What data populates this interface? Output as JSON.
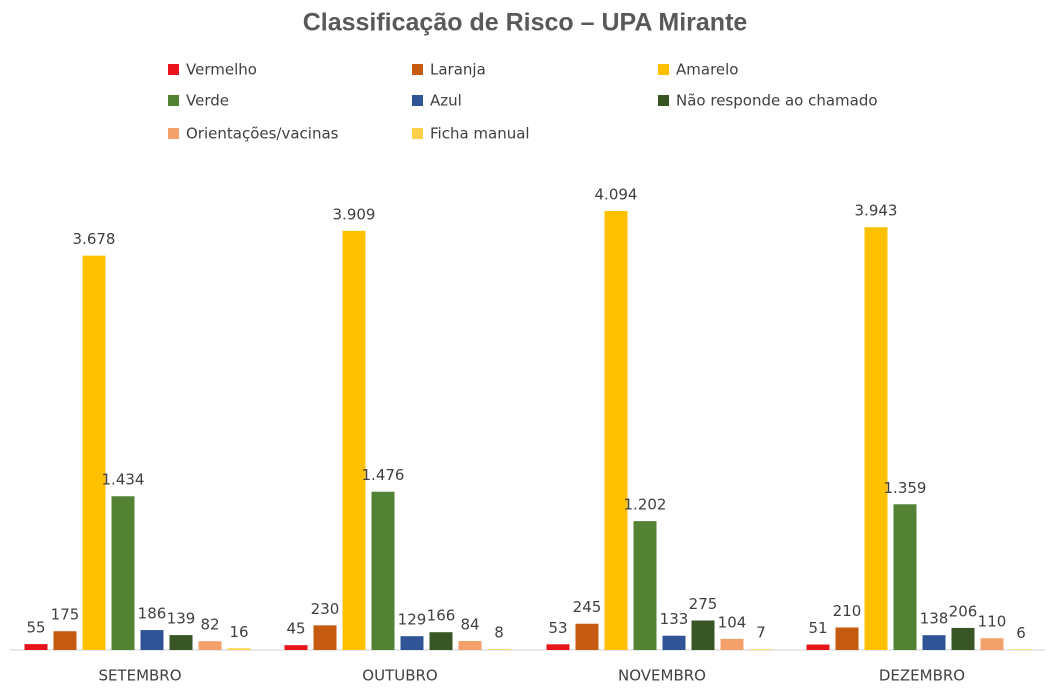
{
  "chart_data": {
    "type": "bar",
    "title": "Classificação de Risco – UPA Mirante",
    "categories": [
      "SETEMBRO",
      "OUTUBRO",
      "NOVEMBRO",
      "DEZEMBRO"
    ],
    "ylim": [
      0,
      4500
    ],
    "series": [
      {
        "name": "Vermelho",
        "color": "#e8141b",
        "values": [
          55,
          45,
          53,
          51
        ]
      },
      {
        "name": "Laranja",
        "color": "#c55a11",
        "values": [
          175,
          230,
          245,
          210
        ]
      },
      {
        "name": "Amarelo",
        "color": "#ffc000",
        "values": [
          3678,
          3909,
          4094,
          3943
        ],
        "value_labels": [
          "3.678",
          "3.909",
          "4.094",
          "3.943"
        ]
      },
      {
        "name": "Verde",
        "color": "#548235",
        "values": [
          1434,
          1476,
          1202,
          1359
        ],
        "value_labels": [
          "1.434",
          "1.476",
          "1.202",
          "1.359"
        ]
      },
      {
        "name": "Azul",
        "color": "#2f5597",
        "values": [
          186,
          129,
          133,
          138
        ]
      },
      {
        "name": "Não responde ao chamado",
        "color": "#375623",
        "values": [
          139,
          166,
          275,
          206
        ]
      },
      {
        "name": "Orientações/vacinas",
        "color": "#f4a06a",
        "values": [
          82,
          84,
          104,
          110
        ]
      },
      {
        "name": "Ficha manual",
        "color": "#ffd04a",
        "values": [
          16,
          8,
          7,
          6
        ]
      }
    ]
  }
}
